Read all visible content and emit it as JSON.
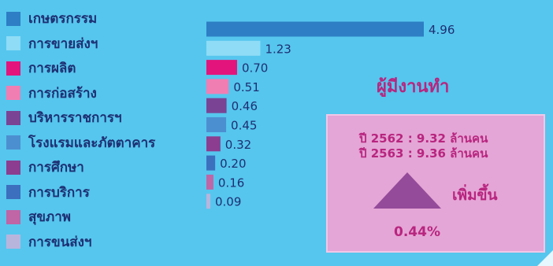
{
  "chart_data": {
    "type": "bar",
    "orientation": "horizontal",
    "categories": [
      "เกษตรกรรม",
      "การขายส่งฯ",
      "การผลิต",
      "การก่อสร้าง",
      "บริหารราชการฯ",
      "โรงแรมและภัตตาคาร",
      "การศึกษา",
      "การบริการ",
      "สุขภาพ",
      "การขนส่งฯ"
    ],
    "values": [
      4.96,
      1.23,
      0.7,
      0.51,
      0.46,
      0.45,
      0.32,
      0.2,
      0.16,
      0.09
    ],
    "value_labels": [
      "4.96",
      "1.23",
      "0.70",
      "0.51",
      "0.46",
      "0.45",
      "0.32",
      "0.20",
      "0.16",
      "0.09"
    ],
    "colors": [
      "#2d7ec4",
      "#8fdcf6",
      "#e3147c",
      "#f07eb3",
      "#7a4394",
      "#4c8fd0",
      "#8c3d8f",
      "#3c6fbe",
      "#c065a6",
      "#b8b5dd"
    ],
    "legend": "left",
    "grid": false,
    "title": "",
    "xlabel": "",
    "ylabel": ""
  },
  "info_box": {
    "headline": "ผู้มีงานทำ",
    "year_2562": "ปี 2562 : 9.32 ล้านคน",
    "year_2563": "ปี 2563 : 9.36 ล้านคน",
    "change_label": "เพิ่มขึ้น",
    "change_pct": "0.44%",
    "triangle_color": "#944b9a"
  }
}
